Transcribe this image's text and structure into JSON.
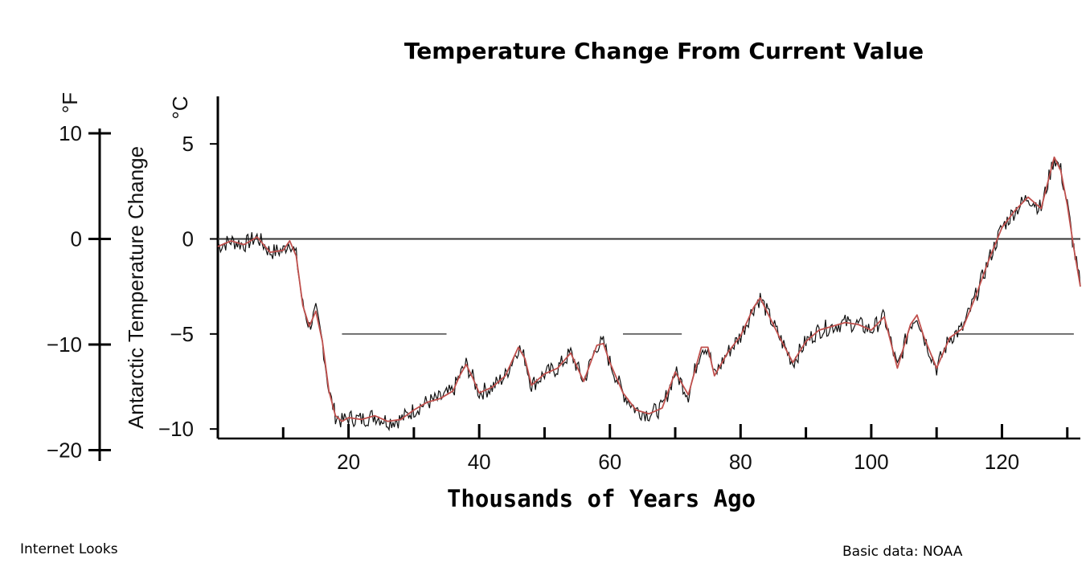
{
  "chart_data": {
    "type": "line",
    "title": "Temperature Change From Current Value",
    "xlabel": "Thousands of Years Ago",
    "ylabel_left": "Antarctic Temperature Change",
    "unit_left": "°F",
    "unit_right": "°C",
    "xlim": [
      0,
      132
    ],
    "ylim_c": [
      -10.5,
      7.5
    ],
    "x_ticks": [
      20,
      40,
      60,
      80,
      100,
      120
    ],
    "y_ticks_c": [
      5,
      0,
      -5,
      -10
    ],
    "y_ticks_f": [
      10,
      0,
      -10,
      -20
    ],
    "reference_line_c": 0,
    "series": [
      {
        "color": "#c0504d",
        "x": [
          0,
          2,
          4,
          6,
          8,
          10,
          11,
          12,
          13,
          14,
          15,
          16,
          17,
          18,
          19,
          20,
          22,
          24,
          26,
          28,
          30,
          32,
          34,
          36,
          37,
          38,
          39,
          40,
          42,
          44,
          46,
          47,
          48,
          50,
          52,
          54,
          56,
          58,
          59,
          60,
          62,
          64,
          66,
          68,
          70,
          72,
          74,
          75,
          76,
          78,
          80,
          82,
          83,
          84,
          86,
          88,
          90,
          92,
          94,
          96,
          98,
          100,
          102,
          104,
          106,
          107,
          108,
          110,
          112,
          114,
          116,
          118,
          120,
          122,
          124,
          126,
          128,
          129,
          130,
          131,
          132
        ],
        "y": [
          -0.4,
          -0.1,
          -0.3,
          0.1,
          -0.7,
          -0.6,
          -0.1,
          -0.9,
          -3.5,
          -4.6,
          -3.8,
          -5.4,
          -8.0,
          -9.3,
          -9.6,
          -9.4,
          -9.5,
          -9.3,
          -9.6,
          -9.5,
          -9.0,
          -8.6,
          -8.4,
          -8.0,
          -7.2,
          -6.6,
          -7.3,
          -8.1,
          -7.8,
          -7.2,
          -5.7,
          -6.3,
          -7.7,
          -7.1,
          -6.8,
          -6.0,
          -7.5,
          -5.6,
          -5.5,
          -6.5,
          -8.1,
          -9.0,
          -9.2,
          -8.9,
          -7.0,
          -8.2,
          -5.7,
          -5.7,
          -7.2,
          -6.0,
          -5.1,
          -3.6,
          -3.1,
          -3.8,
          -5.2,
          -6.5,
          -5.4,
          -4.8,
          -4.6,
          -4.4,
          -4.5,
          -4.8,
          -4.1,
          -6.8,
          -4.5,
          -4.0,
          -5.1,
          -6.8,
          -5.2,
          -4.7,
          -3.0,
          -1.1,
          0.6,
          1.5,
          2.2,
          1.6,
          4.3,
          3.6,
          1.8,
          -0.5,
          -2.5
        ]
      }
    ],
    "range_markers_c": [
      {
        "x": [
          19,
          35
        ],
        "y": -5
      },
      {
        "x": [
          62,
          71
        ],
        "y": -5
      },
      {
        "x": [
          113,
          131
        ],
        "y": -5
      }
    ]
  },
  "credits": {
    "left": "Internet Looks",
    "right": "Basic data: NOAA"
  }
}
